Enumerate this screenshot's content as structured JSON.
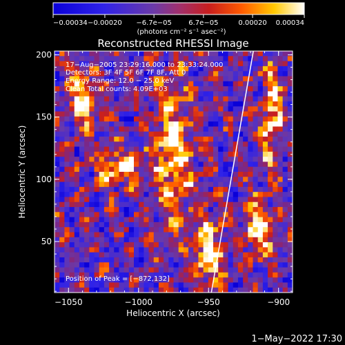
{
  "chart_data": {
    "type": "heatmap",
    "title": "Reconstructed RHESSI Image",
    "xlabel": "Heliocentric X (arcsec)",
    "ylabel": "Heliocentric Y (arcsec)",
    "xlim": [
      -1060,
      -890
    ],
    "ylim": [
      9,
      203
    ],
    "xticks": [
      -1050,
      -1000,
      -950,
      -900
    ],
    "xtick_labels": [
      "−1050",
      "−1000",
      "−950",
      "−900"
    ],
    "yticks": [
      50,
      100,
      150,
      200
    ],
    "ytick_labels": [
      "50",
      "100",
      "150",
      "200"
    ],
    "colorbar": {
      "range": [
        -0.00034,
        0.00034
      ],
      "ticks": [
        -0.00034,
        -0.0002,
        -6.7e-05,
        6.7e-05,
        0.0002,
        0.00034
      ],
      "tick_labels": [
        "−0.00034",
        "−0.00020",
        "−6.7e−05",
        "6.7e−05",
        "0.00020",
        "0.00034"
      ],
      "unit_label": "(photons cm⁻² s⁻¹ asec⁻²)"
    },
    "annotations": [
      "17−Aug−2005 23:29:16.000 to 23:33:24.000",
      "Detectors: 3F 4F 5F 6F 7F 8F, Att 0",
      "Energy Range: 12.0 − 25.0 keV",
      "Clean     Total counts: 4.09E+03"
    ],
    "peak_label": "Position of Peak = [−872,132]",
    "limb_line": [
      [
        -948,
        9
      ],
      [
        -918,
        203
      ]
    ],
    "hot_regions": [
      {
        "x": -975,
        "y": 120,
        "rx": 14,
        "ry": 55
      },
      {
        "x": -950,
        "y": 40,
        "rx": 12,
        "ry": 30
      },
      {
        "x": -905,
        "y": 150,
        "rx": 8,
        "ry": 40
      },
      {
        "x": -915,
        "y": 60,
        "rx": 10,
        "ry": 25
      },
      {
        "x": -1040,
        "y": 165,
        "rx": 12,
        "ry": 22
      },
      {
        "x": -1015,
        "y": 110,
        "rx": 15,
        "ry": 15
      }
    ]
  },
  "footer": {
    "timestamp": "1−May−2022 17:30"
  }
}
